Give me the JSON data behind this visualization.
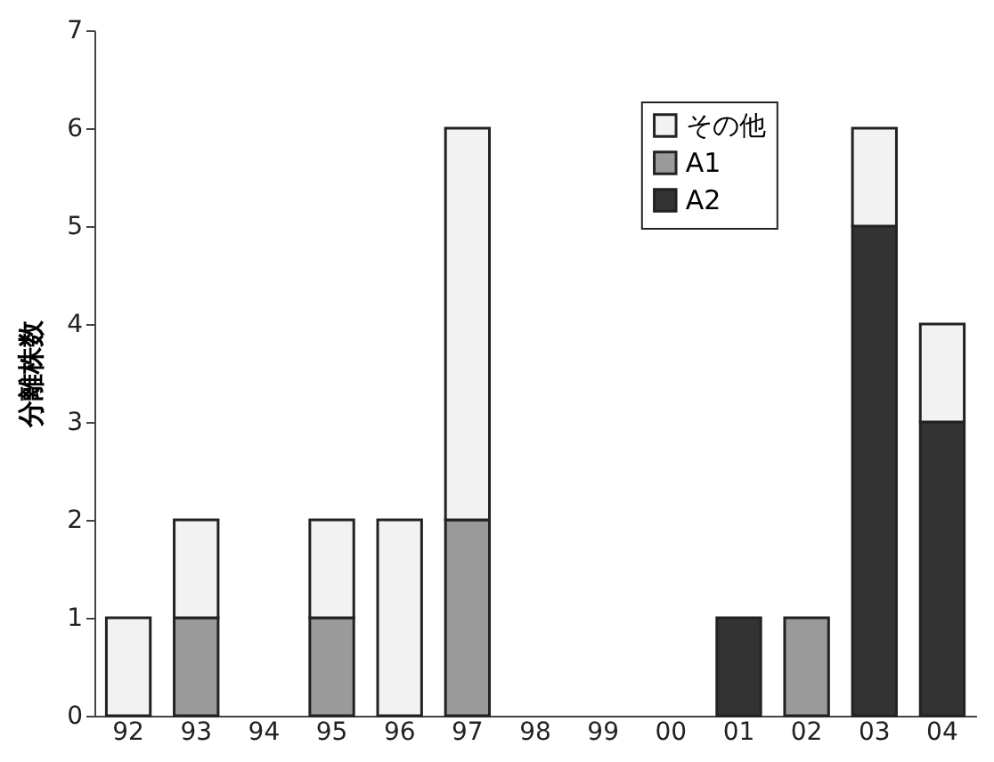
{
  "chart_data": {
    "type": "bar",
    "stacked": true,
    "ylabel": "分離株数",
    "categories": [
      "92",
      "93",
      "94",
      "95",
      "96",
      "97",
      "98",
      "99",
      "00",
      "01",
      "02",
      "03",
      "04"
    ],
    "series": [
      {
        "name": "A2",
        "color": "#333333",
        "values": [
          null,
          null,
          null,
          null,
          null,
          null,
          null,
          null,
          null,
          1,
          null,
          5,
          3
        ]
      },
      {
        "name": "A1",
        "color": "#9a9a9a",
        "values": [
          null,
          1,
          null,
          1,
          null,
          2,
          null,
          null,
          null,
          null,
          1,
          null,
          null
        ]
      },
      {
        "name": "その他",
        "color": "#f2f2f2",
        "values": [
          1,
          1,
          null,
          1,
          2,
          4,
          null,
          null,
          null,
          null,
          null,
          1,
          1
        ]
      }
    ],
    "ylim": [
      0,
      7
    ],
    "yticks": [
      0,
      1,
      2,
      3,
      4,
      5,
      6,
      7
    ],
    "grid": false,
    "legend": "top"
  }
}
